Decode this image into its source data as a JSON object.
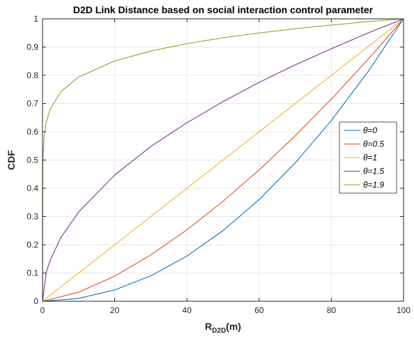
{
  "chart_data": {
    "type": "line",
    "title": "D2D Link Distance based on social interaction control parameter",
    "xlabel": {
      "main": "R",
      "sub": "D2D",
      "unit": "(m)"
    },
    "ylabel": "CDF",
    "xlim": [
      0,
      100
    ],
    "ylim": [
      0,
      1
    ],
    "xticks": [
      0,
      20,
      40,
      60,
      80,
      100
    ],
    "yticks": [
      0,
      0.1,
      0.2,
      0.3,
      0.4,
      0.5,
      0.6,
      0.7,
      0.8,
      0.9,
      1
    ],
    "grid": true,
    "legend_position": "right",
    "series": [
      {
        "name": "θ=0",
        "color": "#0072BD",
        "x": [
          0,
          10,
          20,
          30,
          40,
          50,
          60,
          70,
          80,
          90,
          100
        ],
        "y": [
          0,
          0.01,
          0.04,
          0.09,
          0.16,
          0.25,
          0.36,
          0.49,
          0.64,
          0.81,
          1
        ]
      },
      {
        "name": "θ=0.5",
        "color": "#D95319",
        "x": [
          0,
          10,
          20,
          30,
          40,
          50,
          60,
          70,
          80,
          90,
          100
        ],
        "y": [
          0,
          0.032,
          0.089,
          0.164,
          0.253,
          0.354,
          0.465,
          0.586,
          0.716,
          0.854,
          1
        ]
      },
      {
        "name": "θ=1",
        "color": "#EDB120",
        "x": [
          0,
          20,
          40,
          60,
          80,
          100
        ],
        "y": [
          0,
          0.2,
          0.4,
          0.6,
          0.8,
          1
        ]
      },
      {
        "name": "θ=1.5",
        "color": "#7E2F8E",
        "x": [
          0,
          1,
          2,
          5,
          10,
          20,
          30,
          40,
          50,
          60,
          70,
          80,
          90,
          100
        ],
        "y": [
          0,
          0.1,
          0.141,
          0.224,
          0.316,
          0.447,
          0.548,
          0.632,
          0.707,
          0.775,
          0.837,
          0.894,
          0.949,
          1
        ]
      },
      {
        "name": "θ=1.9",
        "color": "#77AC30",
        "x": [
          0,
          0.1,
          0.5,
          1,
          2,
          5,
          10,
          20,
          30,
          40,
          50,
          60,
          70,
          80,
          90,
          100
        ],
        "y": [
          0,
          0.501,
          0.589,
          0.631,
          0.676,
          0.741,
          0.794,
          0.851,
          0.886,
          0.912,
          0.933,
          0.95,
          0.965,
          0.978,
          0.99,
          1
        ]
      }
    ]
  }
}
